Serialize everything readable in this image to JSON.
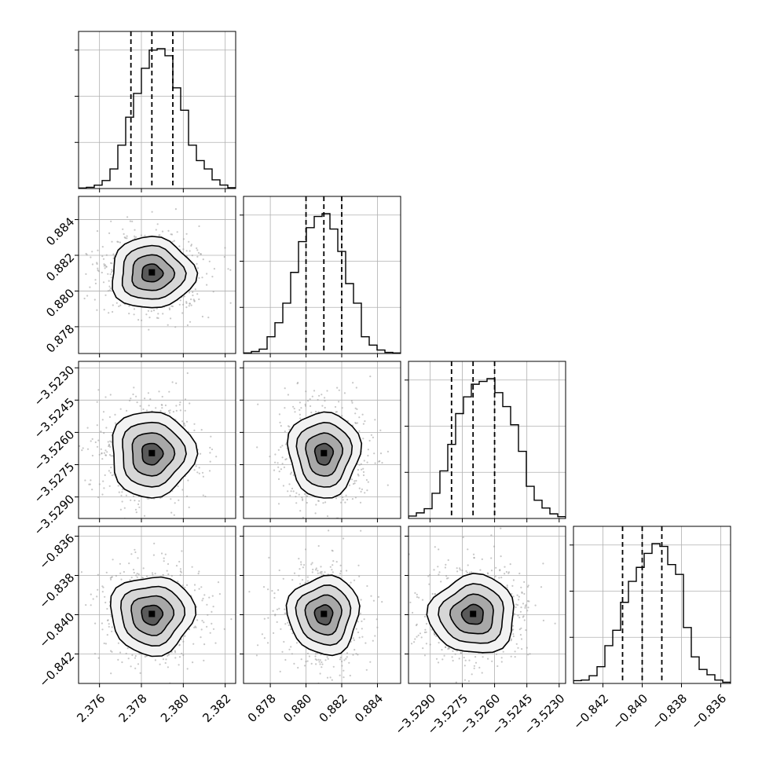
{
  "chart_data": {
    "type": "corner",
    "title": "",
    "colors": {
      "line": "#000000",
      "grid": "#b0b0b0",
      "background": "#ffffff",
      "scatter": "#999999",
      "density_dark": "#000000",
      "density_light": "#ffffff"
    },
    "grid": true,
    "parameters": [
      {
        "mean": 2.3785,
        "sigma": 0.001,
        "range": [
          2.375,
          2.3825
        ],
        "ticks": [
          2.376,
          2.378,
          2.38,
          2.382
        ],
        "tick_labels": [
          "2.376",
          "2.378",
          "2.380",
          "2.382"
        ],
        "quantiles": [
          2.3775,
          2.3785,
          2.3795
        ]
      },
      {
        "mean": 0.881,
        "sigma": 0.001,
        "range": [
          0.8765,
          0.8853
        ],
        "ticks": [
          0.878,
          0.88,
          0.882,
          0.884
        ],
        "tick_labels": [
          "0.878",
          "0.880",
          "0.882",
          "0.884"
        ],
        "quantiles": [
          0.88,
          0.881,
          0.882
        ]
      },
      {
        "mean": -3.527,
        "sigma": 0.001,
        "range": [
          -3.53,
          -3.5227
        ],
        "ticks": [
          -3.529,
          -3.5275,
          -3.526,
          -3.5245,
          -3.523
        ],
        "tick_labels": [
          "−3.5290",
          "−3.5275",
          "−3.5260",
          "−3.5245",
          "−3.5230"
        ],
        "quantiles": [
          -3.528,
          -3.527,
          -3.526
        ]
      },
      {
        "mean": -0.84,
        "sigma": 0.001,
        "range": [
          -0.8435,
          -0.8355
        ],
        "ticks": [
          -0.842,
          -0.84,
          -0.838,
          -0.836
        ],
        "tick_labels": [
          "−0.842",
          "−0.840",
          "−0.838",
          "−0.836"
        ],
        "quantiles": [
          -0.841,
          -0.84,
          -0.839
        ]
      }
    ],
    "histograms": [
      [
        0.004,
        0.009,
        0.024,
        0.057,
        0.14,
        0.31,
        0.51,
        0.68,
        0.86,
        0.99,
        1.0,
        0.95,
        0.72,
        0.56,
        0.31,
        0.2,
        0.14,
        0.062,
        0.025,
        0.006
      ],
      [
        0.004,
        0.014,
        0.031,
        0.12,
        0.22,
        0.36,
        0.58,
        0.8,
        0.9,
        0.98,
        1.0,
        0.89,
        0.73,
        0.5,
        0.36,
        0.12,
        0.06,
        0.025,
        0.008,
        0.004
      ],
      [
        0.017,
        0.04,
        0.07,
        0.18,
        0.34,
        0.53,
        0.75,
        0.87,
        0.96,
        0.98,
        1.0,
        0.9,
        0.8,
        0.67,
        0.48,
        0.23,
        0.13,
        0.075,
        0.033,
        0.013
      ],
      [
        0.02,
        0.024,
        0.055,
        0.12,
        0.27,
        0.38,
        0.58,
        0.73,
        0.83,
        0.93,
        1.0,
        0.98,
        0.85,
        0.78,
        0.4,
        0.19,
        0.1,
        0.062,
        0.024,
        0.009
      ]
    ]
  }
}
